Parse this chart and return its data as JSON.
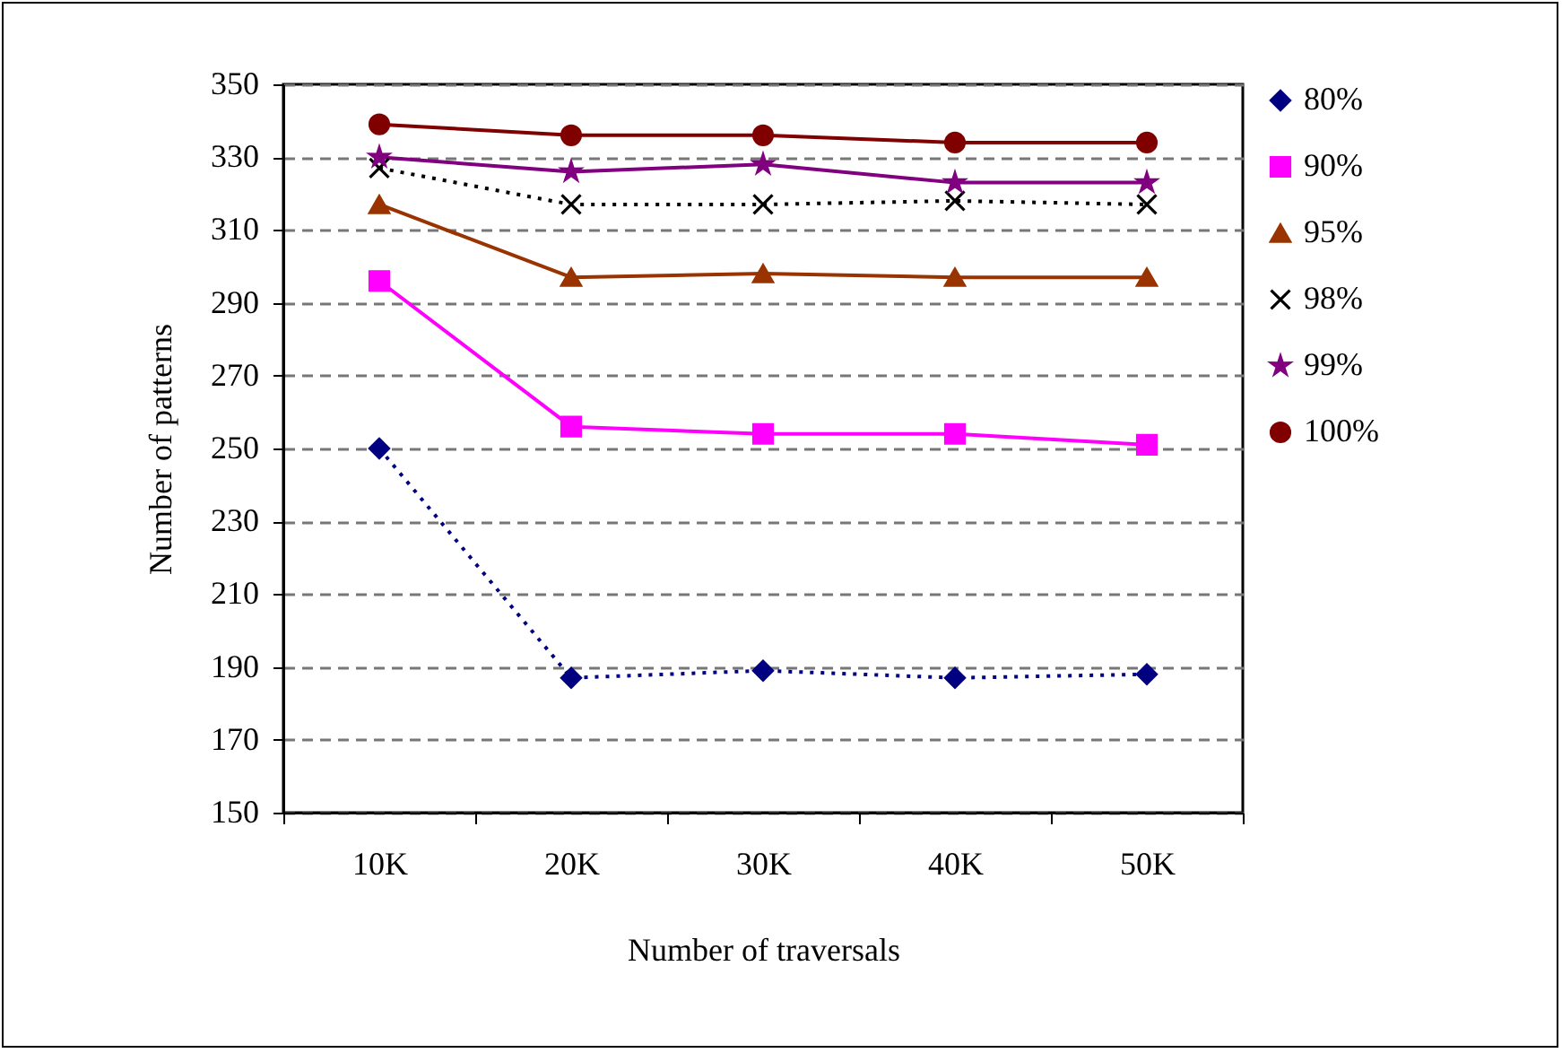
{
  "chart_data": {
    "type": "line",
    "xlabel": "Number of traversals",
    "ylabel": "Number of patterns",
    "categories": [
      "10K",
      "20K",
      "30K",
      "40K",
      "50K"
    ],
    "ylim": [
      150,
      350
    ],
    "yticks": [
      150,
      170,
      190,
      210,
      230,
      250,
      270,
      290,
      310,
      330,
      350
    ],
    "grid": "y",
    "legend": "right",
    "series": [
      {
        "name": "80%",
        "color": "#000080",
        "marker": "diamond",
        "line_style": "dotted",
        "values": [
          250,
          187,
          189,
          187,
          188
        ]
      },
      {
        "name": "90%",
        "color": "#ff00ff",
        "marker": "square",
        "line_style": "solid",
        "values": [
          296,
          256,
          254,
          254,
          251
        ]
      },
      {
        "name": "95%",
        "color": "#993300",
        "marker": "triangle",
        "line_style": "solid",
        "values": [
          317,
          297,
          298,
          297,
          297
        ]
      },
      {
        "name": "98%",
        "color": "#000000",
        "marker": "cross",
        "line_style": "dotted",
        "values": [
          327,
          317,
          317,
          318,
          317
        ]
      },
      {
        "name": "99%",
        "color": "#800080",
        "marker": "star",
        "line_style": "solid",
        "values": [
          330,
          326,
          328,
          323,
          323
        ]
      },
      {
        "name": "100%",
        "color": "#800000",
        "marker": "circle",
        "line_style": "solid",
        "values": [
          339,
          336,
          336,
          334,
          334
        ]
      }
    ]
  }
}
